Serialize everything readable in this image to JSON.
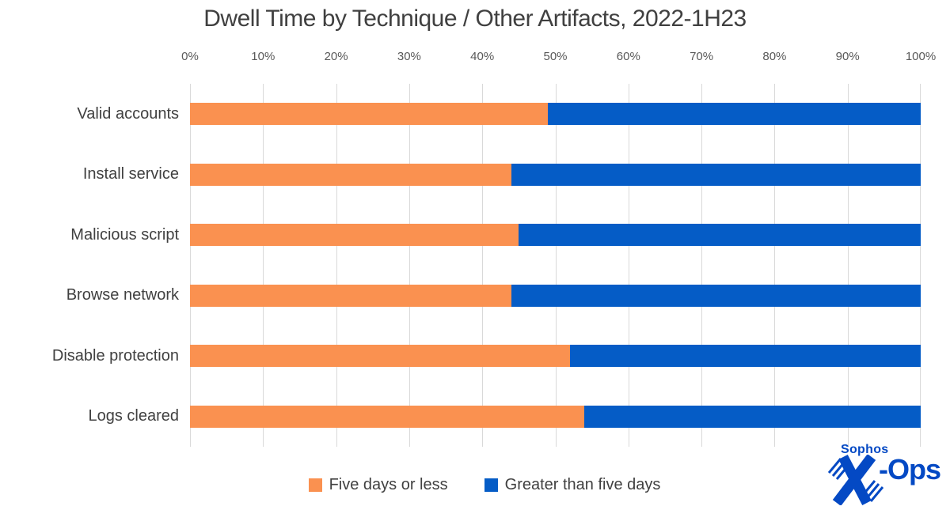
{
  "title": "Dwell Time by Technique / Other Artifacts, 2022-1H23",
  "chart_data": {
    "type": "bar",
    "orientation": "horizontal",
    "stacked": true,
    "title": "Dwell Time by Technique / Other Artifacts, 2022-1H23",
    "categories": [
      "Valid accounts",
      "Install service",
      "Malicious script",
      "Browse network",
      "Disable protection",
      "Logs cleared"
    ],
    "series": [
      {
        "name": "Five days or less",
        "color": "#FA9150",
        "values": [
          49,
          44,
          45,
          44,
          52,
          54
        ]
      },
      {
        "name": "Greater than five days",
        "color": "#055CC6",
        "values": [
          51,
          56,
          55,
          56,
          48,
          46
        ]
      }
    ],
    "x_ticks": [
      "0%",
      "10%",
      "20%",
      "30%",
      "40%",
      "50%",
      "60%",
      "70%",
      "80%",
      "90%",
      "100%"
    ],
    "xlim": [
      0,
      100
    ],
    "units": "%",
    "grid": "vertical-only",
    "gridline_color": "#D9D9D9",
    "legend_position": "bottom"
  },
  "legend": {
    "items": [
      {
        "label": "Five days or less",
        "color": "#FA9150"
      },
      {
        "label": "Greater than five days",
        "color": "#055CC6"
      }
    ]
  },
  "logo": {
    "brand": "Sophos",
    "suffix": "-Ops",
    "color": "#0449C4"
  },
  "colors": {
    "title_text": "#404040",
    "tick_text": "#595959",
    "category_text": "#404040",
    "gridline": "#D9D9D9",
    "background": "#FFFFFF"
  }
}
